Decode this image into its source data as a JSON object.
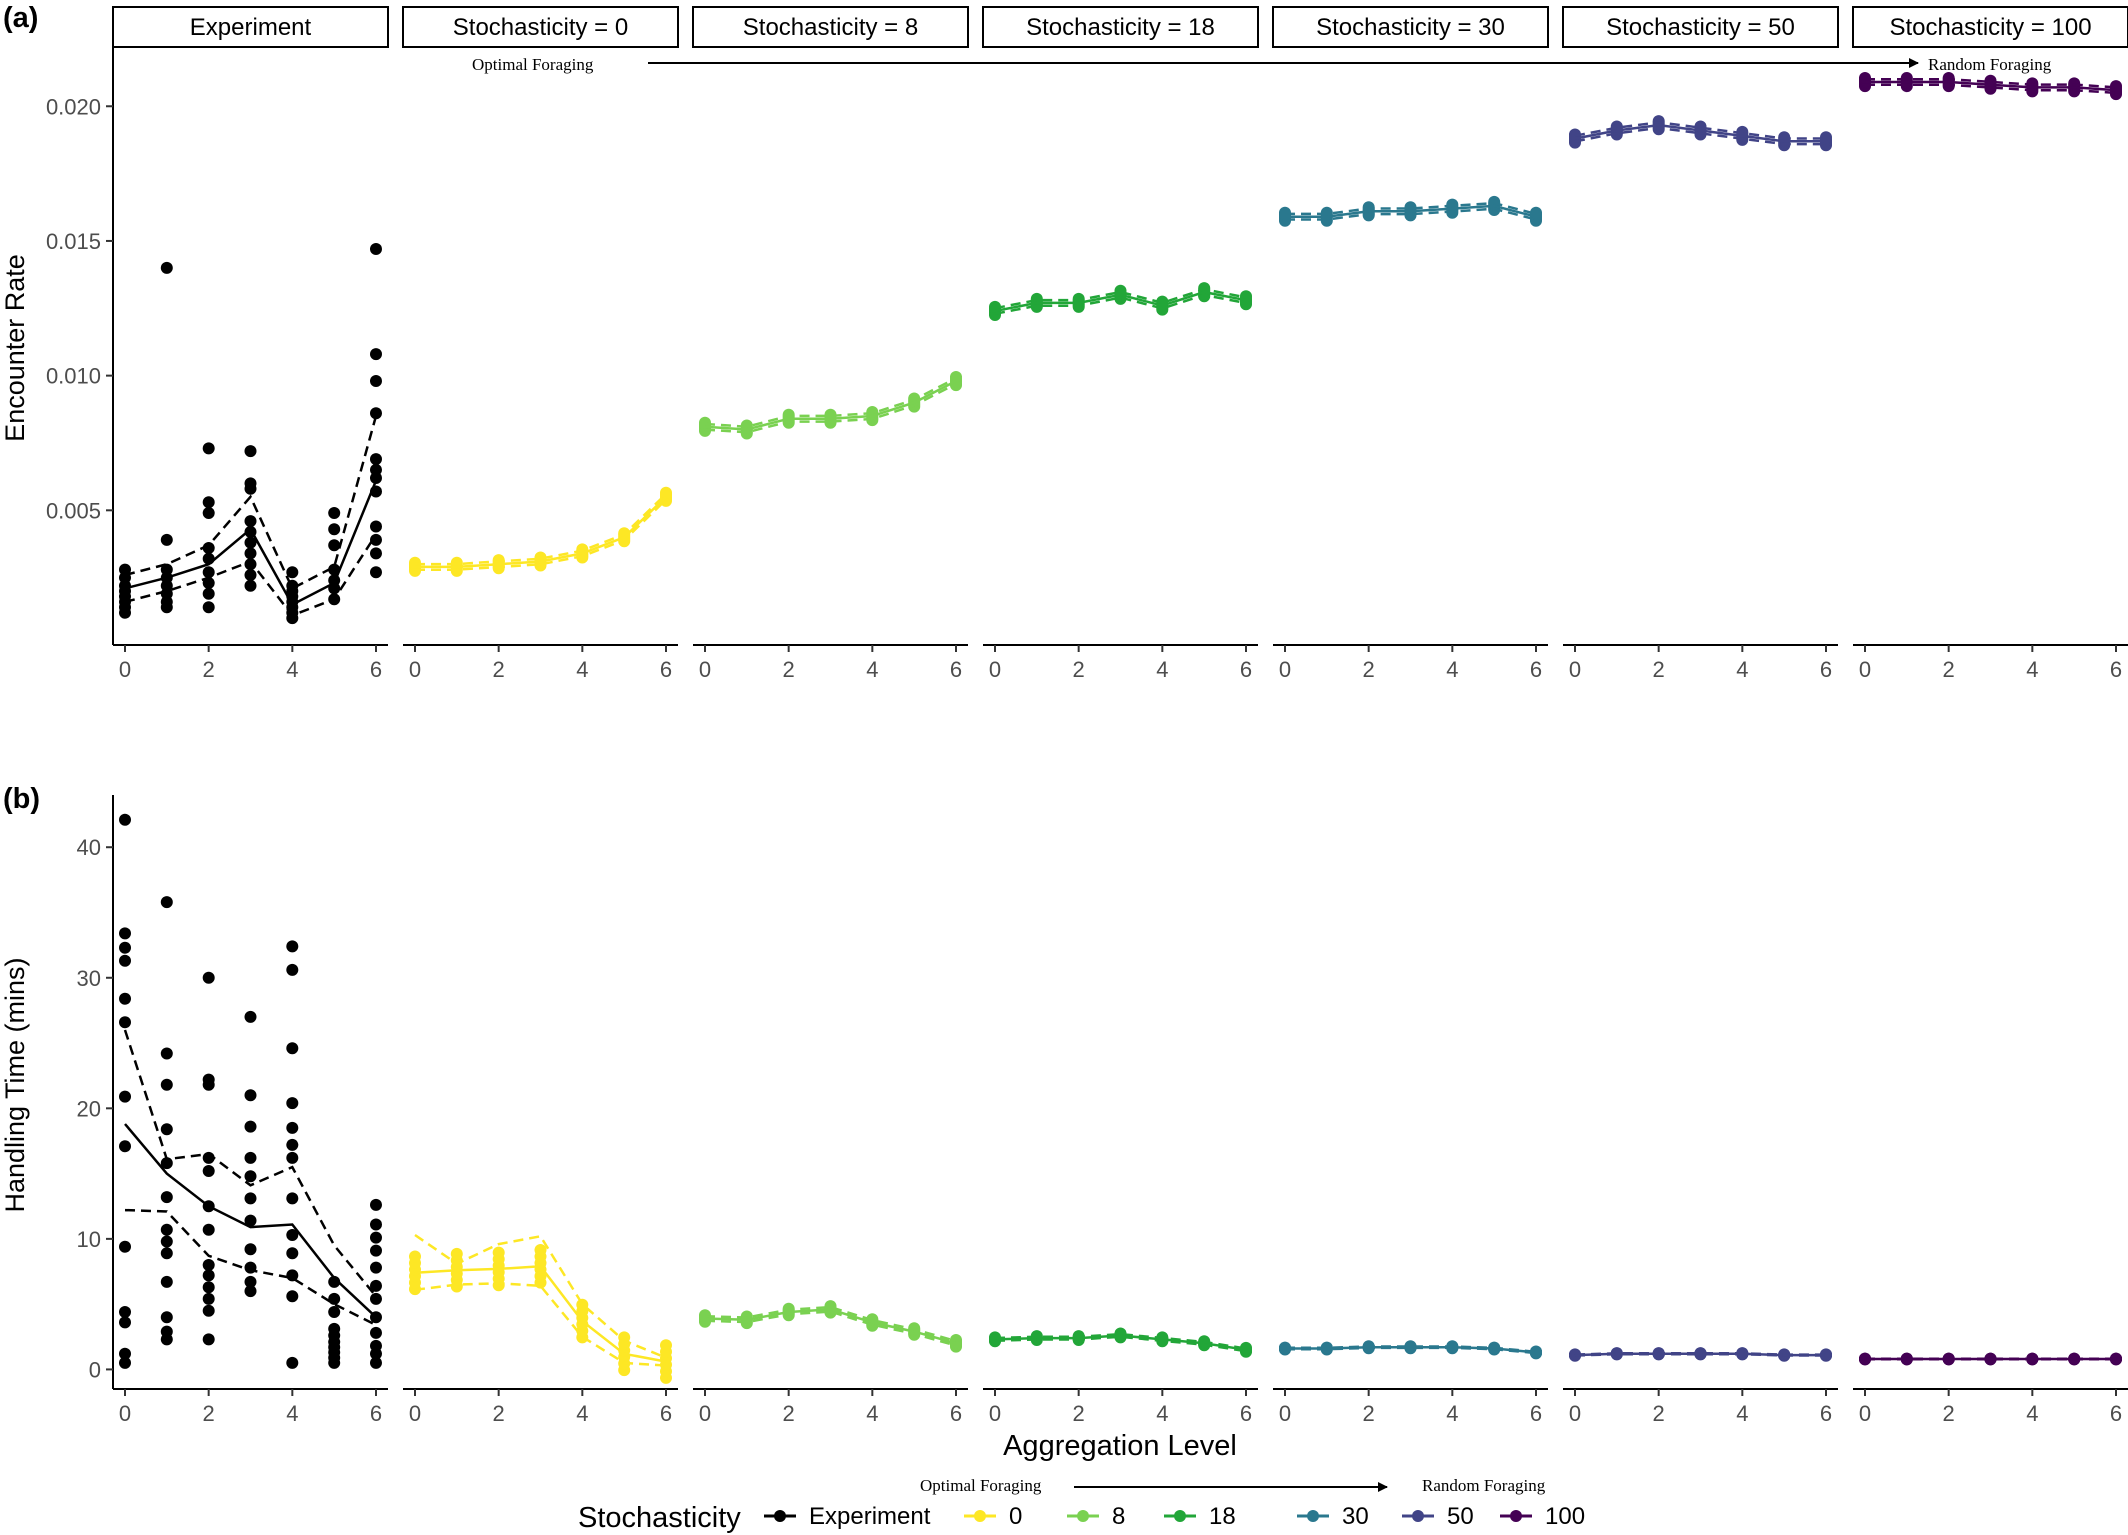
{
  "figure": {
    "panel_labels": [
      "(a)",
      "(b)"
    ],
    "facets": [
      "Experiment",
      "Stochasticity = 0",
      "Stochasticity = 8",
      "Stochasticity = 18",
      "Stochasticity = 30",
      "Stochasticity = 50",
      "Stochasticity = 100"
    ],
    "x_ticks": [
      "0",
      "2",
      "4",
      "6"
    ],
    "xlabel": "Aggregation Level",
    "arrow_left_label": "Optimal Foraging",
    "arrow_right_label": "Random Foraging",
    "legend": {
      "title": "Stochasticity",
      "entries": [
        {
          "label": "Experiment",
          "color": "#000000"
        },
        {
          "label": "0",
          "color": "#FDE725"
        },
        {
          "label": "8",
          "color": "#7AD151"
        },
        {
          "label": "18",
          "color": "#22A638"
        },
        {
          "label": "30",
          "color": "#2A788E"
        },
        {
          "label": "50",
          "color": "#414487"
        },
        {
          "label": "100",
          "color": "#440154"
        }
      ]
    }
  },
  "chart_data": [
    {
      "type": "scatter",
      "panel": "(a)",
      "ylabel": "Encounter Rate",
      "ylim": [
        0.0,
        0.0222
      ],
      "y_ticks": [
        "0.005",
        "0.010",
        "0.015",
        "0.020"
      ],
      "x": [
        0,
        1,
        2,
        3,
        4,
        5,
        6
      ],
      "experiment": {
        "points": [
          [
            0,
            0.0012
          ],
          [
            0,
            0.0014
          ],
          [
            0,
            0.0016
          ],
          [
            0,
            0.0018
          ],
          [
            0,
            0.002
          ],
          [
            0,
            0.0022
          ],
          [
            0,
            0.0025
          ],
          [
            0,
            0.0028
          ],
          [
            1,
            0.0014
          ],
          [
            1,
            0.0016
          ],
          [
            1,
            0.0019
          ],
          [
            1,
            0.0022
          ],
          [
            1,
            0.0025
          ],
          [
            1,
            0.0028
          ],
          [
            1,
            0.0039
          ],
          [
            1,
            0.014
          ],
          [
            2,
            0.0014
          ],
          [
            2,
            0.0019
          ],
          [
            2,
            0.0023
          ],
          [
            2,
            0.0027
          ],
          [
            2,
            0.0032
          ],
          [
            2,
            0.0036
          ],
          [
            2,
            0.0049
          ],
          [
            2,
            0.0053
          ],
          [
            2,
            0.0073
          ],
          [
            3,
            0.0022
          ],
          [
            3,
            0.0026
          ],
          [
            3,
            0.003
          ],
          [
            3,
            0.0034
          ],
          [
            3,
            0.0038
          ],
          [
            3,
            0.0042
          ],
          [
            3,
            0.0046
          ],
          [
            3,
            0.0058
          ],
          [
            3,
            0.006
          ],
          [
            3,
            0.0072
          ],
          [
            4,
            0.001
          ],
          [
            4,
            0.0012
          ],
          [
            4,
            0.0014
          ],
          [
            4,
            0.0016
          ],
          [
            4,
            0.0018
          ],
          [
            4,
            0.002
          ],
          [
            4,
            0.0022
          ],
          [
            4,
            0.0027
          ],
          [
            5,
            0.0017
          ],
          [
            5,
            0.0021
          ],
          [
            5,
            0.0024
          ],
          [
            5,
            0.0028
          ],
          [
            5,
            0.0037
          ],
          [
            5,
            0.0043
          ],
          [
            5,
            0.0049
          ],
          [
            6,
            0.0027
          ],
          [
            6,
            0.0034
          ],
          [
            6,
            0.0039
          ],
          [
            6,
            0.0044
          ],
          [
            6,
            0.0057
          ],
          [
            6,
            0.0062
          ],
          [
            6,
            0.0065
          ],
          [
            6,
            0.0069
          ],
          [
            6,
            0.0086
          ],
          [
            6,
            0.0098
          ],
          [
            6,
            0.0108
          ],
          [
            6,
            0.0147
          ]
        ],
        "mean": [
          0.0021,
          0.0025,
          0.003,
          0.0043,
          0.0015,
          0.0023,
          0.0061
        ],
        "upper": [
          0.0026,
          0.003,
          0.0037,
          0.0055,
          0.0021,
          0.0029,
          0.0085
        ],
        "lower": [
          0.0016,
          0.002,
          0.0025,
          0.0031,
          0.0011,
          0.0017,
          0.0041
        ]
      },
      "series": [
        {
          "name": "0",
          "mean": [
            0.0029,
            0.0029,
            0.003,
            0.0031,
            0.0034,
            0.004,
            0.0055
          ],
          "spread": 0.0003
        },
        {
          "name": "8",
          "mean": [
            0.0081,
            0.008,
            0.0084,
            0.0084,
            0.0085,
            0.009,
            0.0098
          ],
          "spread": 0.0003
        },
        {
          "name": "18",
          "mean": [
            0.0124,
            0.0127,
            0.0127,
            0.013,
            0.0126,
            0.0131,
            0.0128
          ],
          "spread": 0.0003
        },
        {
          "name": "30",
          "mean": [
            0.0159,
            0.0159,
            0.0161,
            0.0161,
            0.0162,
            0.0163,
            0.0159
          ],
          "spread": 0.0003
        },
        {
          "name": "50",
          "mean": [
            0.0188,
            0.0191,
            0.0193,
            0.0191,
            0.0189,
            0.0187,
            0.0187
          ],
          "spread": 0.0003
        },
        {
          "name": "100",
          "mean": [
            0.0209,
            0.0209,
            0.0209,
            0.0208,
            0.0207,
            0.0207,
            0.0206
          ],
          "spread": 0.0003
        }
      ]
    },
    {
      "type": "scatter",
      "panel": "(b)",
      "ylabel": "Handling Time (mins)",
      "ylim": [
        -1.5,
        44
      ],
      "y_ticks": [
        "0",
        "10",
        "20",
        "30",
        "40"
      ],
      "x": [
        0,
        1,
        2,
        3,
        4,
        5,
        6
      ],
      "experiment": {
        "points": [
          [
            0,
            0.5
          ],
          [
            0,
            1.2
          ],
          [
            0,
            3.6
          ],
          [
            0,
            4.4
          ],
          [
            0,
            9.4
          ],
          [
            0,
            17.1
          ],
          [
            0,
            20.9
          ],
          [
            0,
            26.6
          ],
          [
            0,
            28.4
          ],
          [
            0,
            31.3
          ],
          [
            0,
            32.3
          ],
          [
            0,
            33.4
          ],
          [
            0,
            42.1
          ],
          [
            1,
            2.3
          ],
          [
            1,
            2.9
          ],
          [
            1,
            4
          ],
          [
            1,
            6.7
          ],
          [
            1,
            8.9
          ],
          [
            1,
            9.8
          ],
          [
            1,
            10.7
          ],
          [
            1,
            13.2
          ],
          [
            1,
            15.8
          ],
          [
            1,
            18.4
          ],
          [
            1,
            21.8
          ],
          [
            1,
            24.2
          ],
          [
            1,
            35.8
          ],
          [
            2,
            2.3
          ],
          [
            2,
            4.5
          ],
          [
            2,
            5.4
          ],
          [
            2,
            6.3
          ],
          [
            2,
            7.2
          ],
          [
            2,
            8
          ],
          [
            2,
            10.7
          ],
          [
            2,
            12.5
          ],
          [
            2,
            15.2
          ],
          [
            2,
            16.2
          ],
          [
            2,
            21.8
          ],
          [
            2,
            22.2
          ],
          [
            2,
            30
          ],
          [
            3,
            6
          ],
          [
            3,
            6.7
          ],
          [
            3,
            7.8
          ],
          [
            3,
            9.2
          ],
          [
            3,
            11.4
          ],
          [
            3,
            13.1
          ],
          [
            3,
            14.8
          ],
          [
            3,
            16.2
          ],
          [
            3,
            18.6
          ],
          [
            3,
            21
          ],
          [
            3,
            27
          ],
          [
            4,
            0.5
          ],
          [
            4,
            5.6
          ],
          [
            4,
            7.2
          ],
          [
            4,
            8.9
          ],
          [
            4,
            10.3
          ],
          [
            4,
            13.1
          ],
          [
            4,
            16.2
          ],
          [
            4,
            17.2
          ],
          [
            4,
            18.5
          ],
          [
            4,
            20.4
          ],
          [
            4,
            24.6
          ],
          [
            4,
            30.6
          ],
          [
            4,
            32.4
          ],
          [
            5,
            0.5
          ],
          [
            5,
            0.9
          ],
          [
            5,
            1.3
          ],
          [
            5,
            1.7
          ],
          [
            5,
            2.1
          ],
          [
            5,
            2.6
          ],
          [
            5,
            3.1
          ],
          [
            5,
            4.4
          ],
          [
            5,
            5.4
          ],
          [
            5,
            6.7
          ],
          [
            6,
            0.5
          ],
          [
            6,
            1.2
          ],
          [
            6,
            1.8
          ],
          [
            6,
            2.8
          ],
          [
            6,
            4
          ],
          [
            6,
            5.4
          ],
          [
            6,
            6.4
          ],
          [
            6,
            7.8
          ],
          [
            6,
            9.1
          ],
          [
            6,
            10.1
          ],
          [
            6,
            11.1
          ],
          [
            6,
            12.6
          ]
        ],
        "mean": [
          18.8,
          15,
          12.5,
          10.9,
          11.1,
          7,
          4
        ],
        "upper": [
          26,
          16.1,
          16.5,
          14.1,
          15.5,
          9.5,
          5.6
        ],
        "lower": [
          12.2,
          12.1,
          8.7,
          7.6,
          7,
          5,
          3.4
        ]
      },
      "series": [
        {
          "name": "0",
          "mean": [
            7.4,
            7.6,
            7.7,
            7.9,
            3.7,
            1.2,
            0.6
          ],
          "upper": [
            10.3,
            8.1,
            9.6,
            10.2,
            5,
            2.2,
            0.9
          ],
          "lower": [
            6.1,
            6.5,
            6.6,
            6.4,
            2.5,
            0.5,
            0.3
          ],
          "spread": 2.5
        },
        {
          "name": "8",
          "mean": [
            3.9,
            3.8,
            4.4,
            4.6,
            3.6,
            2.9,
            2
          ],
          "spread": 0.5
        },
        {
          "name": "18",
          "mean": [
            2.3,
            2.4,
            2.4,
            2.6,
            2.3,
            2,
            1.5
          ],
          "spread": 0.3
        },
        {
          "name": "30",
          "mean": [
            1.6,
            1.6,
            1.7,
            1.7,
            1.7,
            1.6,
            1.3
          ],
          "spread": 0.15
        },
        {
          "name": "50",
          "mean": [
            1.1,
            1.2,
            1.2,
            1.2,
            1.2,
            1.1,
            1.1
          ],
          "spread": 0.1
        },
        {
          "name": "100",
          "mean": [
            0.8,
            0.8,
            0.8,
            0.8,
            0.8,
            0.8,
            0.8
          ],
          "spread": 0.06
        }
      ]
    }
  ]
}
